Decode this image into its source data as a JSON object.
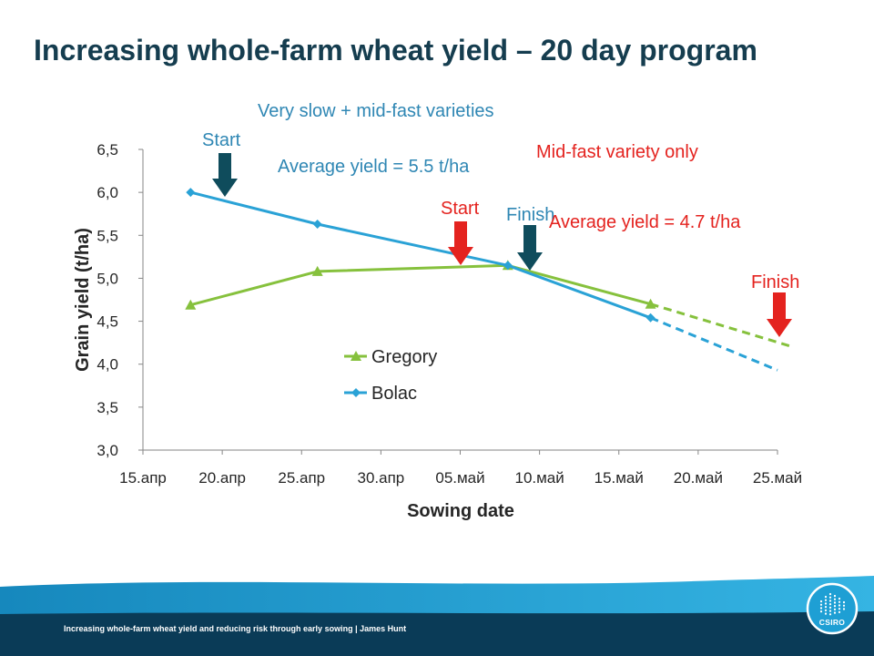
{
  "slide": {
    "title": "Increasing whole-farm wheat yield – 20 day program",
    "footer": "Increasing whole-farm wheat yield and reducing risk through early sowing | James Hunt",
    "logo_text": "CSIRO"
  },
  "colors": {
    "title": "#153d4f",
    "annotation_blue": "#2f87b4",
    "annotation_red": "#e4231f",
    "arrow_dark": "#0f4c5c",
    "arrow_red": "#e4231f",
    "band_dark": "#0a3b57",
    "logo": "#1e9fd4"
  },
  "annotations": {
    "two_variety_heading": "Very slow + mid-fast varieties",
    "two_variety_start": "Start",
    "two_variety_average": "Average yield = 5.5 t/ha",
    "two_variety_finish": "Finish",
    "single_variety_heading": "Mid-fast variety only",
    "single_variety_start": "Start",
    "single_variety_average": "Average yield = 4.7 t/ha",
    "single_variety_finish": "Finish"
  },
  "chart_data": {
    "type": "line",
    "xlabel": "Sowing date",
    "ylabel": "Grain yield (t/ha)",
    "x_range": [
      "15.апр",
      "25.май"
    ],
    "x_ticks": [
      "15.апр",
      "20.апр",
      "25.апр",
      "30.апр",
      "05.май",
      "10.май",
      "15.май",
      "20.май",
      "25.май"
    ],
    "y_range": [
      3.0,
      6.5
    ],
    "y_ticks": [
      3.0,
      3.5,
      4.0,
      4.5,
      5.0,
      5.5,
      6.0,
      6.5
    ],
    "y_tick_labels": [
      "3,0",
      "3,5",
      "4,0",
      "4,5",
      "5,0",
      "5,5",
      "6,0",
      "6,5"
    ],
    "grid": false,
    "legend": "center-left",
    "series": [
      {
        "name": "Gregory",
        "color": "#86c13d",
        "marker": "triangle",
        "x": [
          "18.апр",
          "26.апр",
          "08.май",
          "17.май"
        ],
        "y": [
          4.69,
          5.08,
          5.15,
          4.7
        ],
        "projection": {
          "style": "dashed",
          "x": [
            "17.май",
            "26.май"
          ],
          "y": [
            4.7,
            4.2
          ]
        }
      },
      {
        "name": "Bolac",
        "color": "#2aa2d6",
        "marker": "diamond",
        "x": [
          "18.апр",
          "26.апр",
          "08.май",
          "17.май"
        ],
        "y": [
          6.0,
          5.63,
          5.15,
          4.54
        ],
        "projection": {
          "style": "dashed",
          "x": [
            "17.май",
            "25.май"
          ],
          "y": [
            4.54,
            3.93
          ]
        }
      }
    ]
  }
}
